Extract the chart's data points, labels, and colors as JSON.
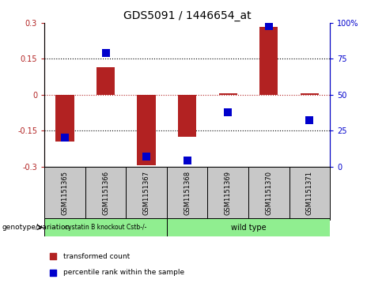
{
  "title": "GDS5091 / 1446654_at",
  "samples": [
    "GSM1151365",
    "GSM1151366",
    "GSM1151367",
    "GSM1151368",
    "GSM1151369",
    "GSM1151370",
    "GSM1151371"
  ],
  "red_values": [
    -0.195,
    0.115,
    -0.295,
    -0.175,
    0.005,
    0.285,
    0.005
  ],
  "blue_pct": [
    20,
    79,
    7,
    4,
    38,
    98,
    32
  ],
  "ylim": [
    -0.3,
    0.3
  ],
  "yticks_left": [
    -0.3,
    -0.15,
    0,
    0.15,
    0.3
  ],
  "yticks_right_labels": [
    "0",
    "25",
    "50",
    "75",
    "100%"
  ],
  "hlines_dotted": [
    -0.15,
    0.15
  ],
  "group1_label": "cystatin B knockout Cstb-/-",
  "group2_label": "wild type",
  "group_label_prefix": "genotype/variation",
  "legend1_label": "transformed count",
  "legend2_label": "percentile rank within the sample",
  "red_color": "#b22222",
  "blue_color": "#0000cc",
  "bar_width": 0.45,
  "blue_marker_size": 45,
  "group1_color": "#90ee90",
  "group2_color": "#90ee90",
  "bg_color": "#c8c8c8",
  "title_fontsize": 10,
  "tick_fontsize": 7,
  "label_fontsize": 7
}
